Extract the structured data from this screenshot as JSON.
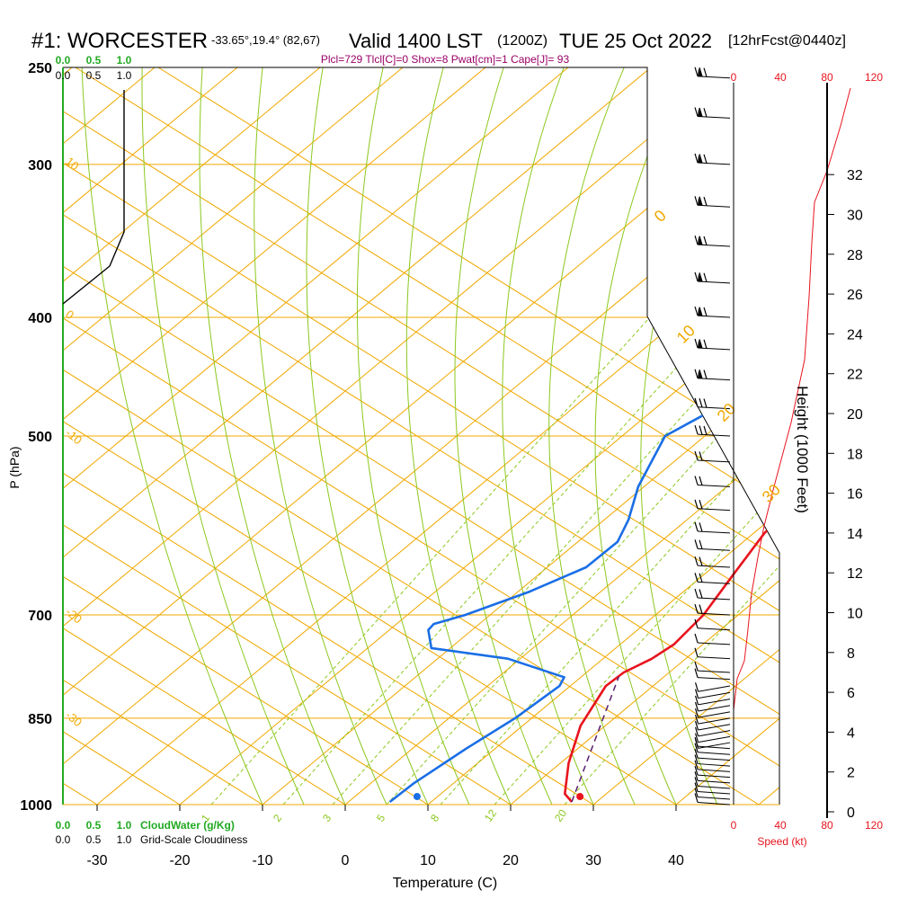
{
  "header": {
    "station": "#1: WORCESTER",
    "coords": "-33.65°,19.4° (82,67)",
    "valid": "Valid 1400 LST",
    "utc": "(1200Z)",
    "date": "TUE 25 Oct 2022",
    "forecast": "[12hrFcst@0440z]"
  },
  "indices": "Plcl=729 Tlcl[C]=0 Shox=8 Pwat[cm]=1 Cape[J]= 93",
  "labels": {
    "ylabel": "P (hPa)",
    "xlabel": "Temperature (C)",
    "height_label": "Height (1000 Feet)",
    "speed_label": "Speed (kt)",
    "cloudwater_label": "CloudWater (g/Kg)",
    "cloudiness_label": "Grid-Scale Cloudiness"
  },
  "colors": {
    "temperature": "#e8141e",
    "dewpoint": "#1a6ee6",
    "isotherm": "#f0a800",
    "dry_adiabat": "#f0a800",
    "moist_adiabat": "#8cc81e",
    "mixing_ratio": "#8cc81e",
    "parcel": "#5a1e6e",
    "cloud_green": "#22aa22",
    "speed_red": "#e8141e",
    "indices": "#990066"
  },
  "chart_data": {
    "type": "line",
    "subtype": "skew-T log-P sounding",
    "x_axis": {
      "label": "Temperature (C)",
      "ticks": [
        -30,
        -20,
        -10,
        0,
        10,
        20,
        30,
        40
      ]
    },
    "y_axis": {
      "label": "P (hPa)",
      "ticks": [
        250,
        300,
        400,
        500,
        700,
        850,
        1000
      ],
      "scale": "log"
    },
    "isotherm_labels": [
      "10",
      "0",
      "-10",
      "-20",
      "-30"
    ],
    "dry_adiabat_labels": [
      "0",
      "10",
      "20",
      "30"
    ],
    "mixing_ratio_labels": [
      "1",
      "2",
      "3",
      "5",
      "8",
      "12",
      "20"
    ],
    "cloud_axis_ticks": [
      "0.0",
      "0.5",
      "1.0"
    ],
    "series": [
      {
        "key": "temperature",
        "points": [
          [
            27,
            995
          ],
          [
            25,
            980
          ],
          [
            21,
            925
          ],
          [
            17,
            862
          ],
          [
            14.3,
            800
          ],
          [
            14.5,
            780
          ],
          [
            15.9,
            760
          ],
          [
            16.5,
            740
          ],
          [
            15.8,
            700
          ],
          [
            13.6,
            650
          ],
          [
            11.3,
            600
          ],
          [
            10.3,
            550
          ],
          [
            10.7,
            500
          ],
          [
            9.5,
            450
          ],
          [
            6.5,
            400
          ],
          [
            2.0,
            350
          ],
          [
            -2.6,
            300
          ],
          [
            -6.4,
            262
          ]
        ]
      },
      {
        "key": "dewpoint",
        "points": [
          [
            5,
            995
          ],
          [
            5.2,
            960
          ],
          [
            6.5,
            900
          ],
          [
            8,
            850
          ],
          [
            8.7,
            800
          ],
          [
            8,
            787
          ],
          [
            -1.5,
            760
          ],
          [
            -12.3,
            745
          ],
          [
            -15.3,
            720
          ],
          [
            -15.5,
            712
          ],
          [
            -13,
            700
          ],
          [
            -8.6,
            670
          ],
          [
            -5.3,
            640
          ],
          [
            -5.2,
            610
          ],
          [
            -7.1,
            585
          ],
          [
            -10.7,
            550
          ],
          [
            -14.8,
            500
          ],
          [
            -10.5,
            450
          ],
          [
            -5,
            420
          ],
          [
            -2,
            400
          ],
          [
            -0.5,
            370
          ],
          [
            -1,
            350
          ],
          [
            -4.5,
            300
          ],
          [
            -7.4,
            265
          ]
        ]
      },
      {
        "key": "parcel",
        "points": [
          [
            27,
            995
          ],
          [
            14.5,
            786
          ]
        ]
      }
    ],
    "surface": {
      "temperature": 28,
      "dewpoint": 8.3
    },
    "cloudiness": [
      [
        0.0,
        255
      ],
      [
        0.0,
        340
      ],
      [
        0.0,
        375
      ],
      [
        0.0,
        393
      ],
      [
        0.0,
        1000
      ]
    ],
    "wind_speed_axis": {
      "ticks": [
        0,
        40,
        80,
        120
      ],
      "unit": "kt"
    },
    "height_axis": {
      "ticks": [
        0,
        2,
        4,
        6,
        8,
        10,
        12,
        14,
        16,
        18,
        20,
        22,
        24,
        26,
        28,
        30,
        32
      ],
      "unit": "1000 ft"
    },
    "wind_profile_pressures": [
      1000,
      990,
      980,
      970,
      960,
      950,
      940,
      930,
      920,
      910,
      900,
      890,
      880,
      870,
      860,
      850,
      840,
      830,
      820,
      810,
      800,
      790,
      780,
      760,
      740,
      720,
      700,
      680,
      660,
      640,
      620,
      600,
      575,
      550,
      525,
      500,
      475,
      450,
      425,
      400,
      375,
      350,
      325,
      300,
      275,
      255
    ]
  }
}
